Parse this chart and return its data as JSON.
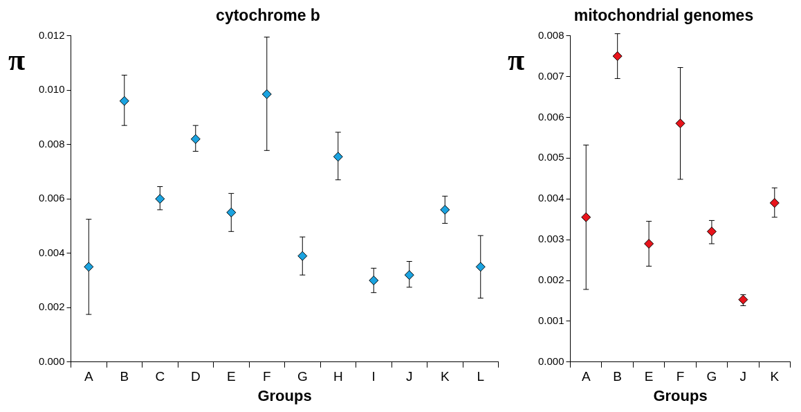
{
  "chart_data": [
    {
      "type": "scatter",
      "title": "cytochrome b",
      "xlabel": "Groups",
      "ylabel": "π",
      "categories": [
        "A",
        "B",
        "C",
        "D",
        "E",
        "F",
        "G",
        "H",
        "I",
        "J",
        "K",
        "L"
      ],
      "marker": "diamond",
      "legend": false,
      "grid": false,
      "ylim": [
        0,
        0.012
      ],
      "yticks": [
        {
          "value": 0,
          "label": "0.000"
        },
        {
          "value": 0.002,
          "label": "0.002"
        },
        {
          "value": 0.004,
          "label": "0.004"
        },
        {
          "value": 0.006,
          "label": "0.006"
        },
        {
          "value": 0.008,
          "label": "0.008"
        },
        {
          "value": 0.01,
          "label": "0.010"
        },
        {
          "value": 0.012,
          "label": "0.012"
        }
      ],
      "series": [
        {
          "color": "#1ba3e0",
          "values": [
            0.0035,
            0.0096,
            0.006,
            0.0082,
            0.0055,
            0.00985,
            0.0039,
            0.00755,
            0.003,
            0.0032,
            0.0056,
            0.0035
          ],
          "errors": [
            [
              0.00175,
              0.00525
            ],
            [
              0.0087,
              0.01055
            ],
            [
              0.0056,
              0.00645
            ],
            [
              0.00775,
              0.0087
            ],
            [
              0.0048,
              0.0062
            ],
            [
              0.00778,
              0.01195
            ],
            [
              0.0032,
              0.0046
            ],
            [
              0.0067,
              0.00845
            ],
            [
              0.00255,
              0.00345
            ],
            [
              0.00275,
              0.0037
            ],
            [
              0.0051,
              0.0061
            ],
            [
              0.00235,
              0.00465
            ]
          ]
        }
      ]
    },
    {
      "type": "scatter",
      "title": "mitochondrial genomes",
      "xlabel": "Groups",
      "ylabel": "π",
      "categories": [
        "A",
        "B",
        "E",
        "F",
        "G",
        "J",
        "K"
      ],
      "marker": "diamond",
      "legend": false,
      "grid": false,
      "ylim": [
        0,
        0.008
      ],
      "yticks": [
        {
          "value": 0,
          "label": "0.000"
        },
        {
          "value": 0.001,
          "label": "0.001"
        },
        {
          "value": 0.002,
          "label": "0.002"
        },
        {
          "value": 0.003,
          "label": "0.003"
        },
        {
          "value": 0.004,
          "label": "0.004"
        },
        {
          "value": 0.005,
          "label": "0.005"
        },
        {
          "value": 0.006,
          "label": "0.006"
        },
        {
          "value": 0.007,
          "label": "0.007"
        },
        {
          "value": 0.008,
          "label": "0.008"
        }
      ],
      "series": [
        {
          "color": "#e8141b",
          "values": [
            0.00355,
            0.0075,
            0.0029,
            0.00585,
            0.0032,
            0.00153,
            0.0039
          ],
          "errors": [
            [
              0.00178,
              0.00532
            ],
            [
              0.00695,
              0.00805
            ],
            [
              0.00235,
              0.00345
            ],
            [
              0.00448,
              0.00722
            ],
            [
              0.0029,
              0.00347
            ],
            [
              0.00138,
              0.00165
            ],
            [
              0.00355,
              0.00427
            ]
          ]
        }
      ]
    }
  ]
}
